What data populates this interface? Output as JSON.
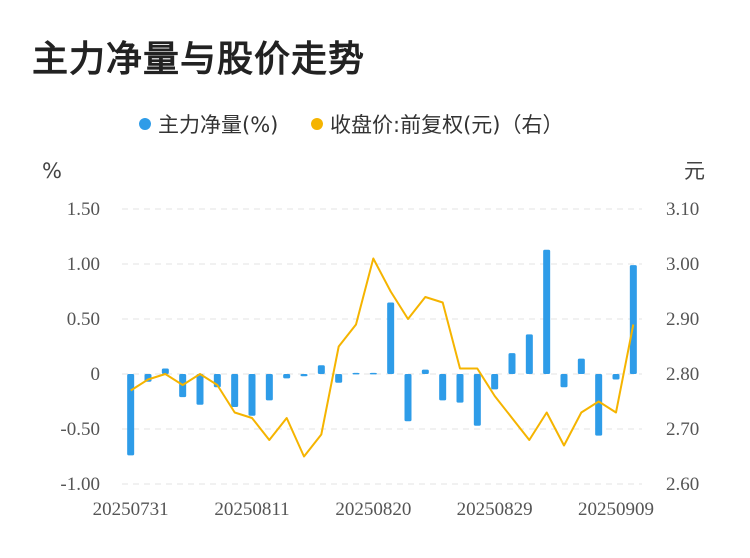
{
  "title": "主力净量与股价走势",
  "legend": {
    "bar_label": "主力净量(%)",
    "line_label": "收盘价:前复权(元)（右）"
  },
  "colors": {
    "bar": "#2e9ce8",
    "line": "#f5b400",
    "grid": "#e3e3e3",
    "text": "#555555"
  },
  "chart_data": {
    "type": "bar+line",
    "left_unit": "%",
    "right_unit": "元",
    "x_tick_labels": [
      "20250731",
      "20250811",
      "20250820",
      "20250829",
      "20250909"
    ],
    "x_tick_indices": [
      0,
      7,
      14,
      21,
      28
    ],
    "y_left": {
      "ticks": [
        "1.50",
        "1.00",
        "0.50",
        "0",
        "-0.50",
        "-1.00"
      ],
      "values": [
        1.5,
        1.0,
        0.5,
        0,
        -0.5,
        -1.0
      ],
      "range": [
        -1.0,
        1.5
      ]
    },
    "y_right": {
      "ticks": [
        "3.10",
        "3.00",
        "2.90",
        "2.80",
        "2.70",
        "2.60"
      ],
      "values": [
        3.1,
        3.0,
        2.9,
        2.8,
        2.7,
        2.6
      ],
      "range": [
        2.6,
        3.1
      ]
    },
    "series": [
      {
        "name": "主力净量(%)",
        "kind": "bar",
        "axis": "left",
        "values": [
          -0.74,
          -0.07,
          0.05,
          -0.21,
          -0.28,
          -0.12,
          -0.3,
          -0.38,
          -0.24,
          -0.04,
          -0.02,
          0.08,
          -0.08,
          0.01,
          0.01,
          0.65,
          -0.43,
          0.04,
          -0.24,
          -0.26,
          -0.47,
          -0.14,
          0.19,
          0.36,
          1.13,
          -0.12,
          0.14,
          -0.56,
          -0.05,
          0.99
        ]
      },
      {
        "name": "收盘价:前复权(元)（右）",
        "kind": "line",
        "axis": "right",
        "values": [
          2.77,
          2.79,
          2.8,
          2.78,
          2.8,
          2.78,
          2.73,
          2.72,
          2.68,
          2.72,
          2.65,
          2.69,
          2.85,
          2.89,
          3.01,
          2.95,
          2.9,
          2.94,
          2.93,
          2.81,
          2.81,
          2.76,
          2.72,
          2.68,
          2.73,
          2.67,
          2.73,
          2.75,
          2.73,
          2.89
        ]
      }
    ]
  }
}
